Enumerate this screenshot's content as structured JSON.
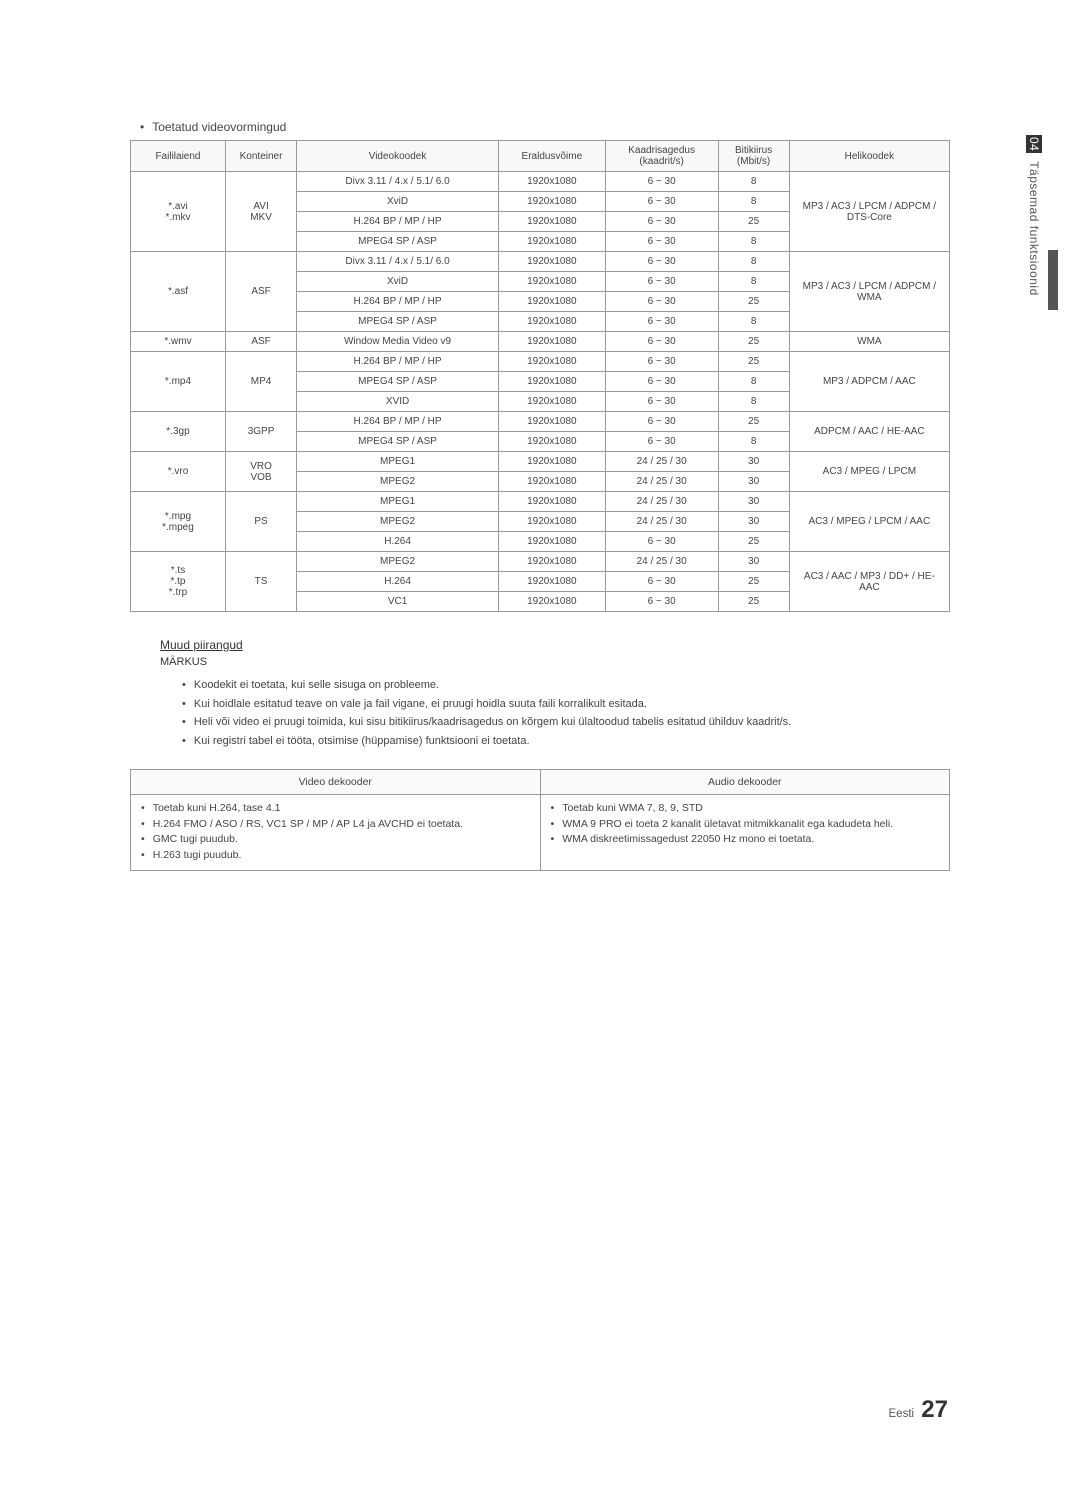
{
  "sideTab": {
    "num": "04",
    "label": "Täpsemad funktsioonid"
  },
  "sectionTitle": "Toetatud videovormingud",
  "headers": {
    "ext": "Faililaiend",
    "cont": "Konteiner",
    "codec": "Videokoodek",
    "res": "Eraldusvõime",
    "fps": "Kaadrisagedus (kaadrit/s)",
    "bit": "Bitikiirus (Mbit/s)",
    "audio": "Helikoodek"
  },
  "groups": [
    {
      "ext": "*.avi\n*.mkv",
      "cont": "AVI\nMKV",
      "audio": "MP3 / AC3 / LPCM / ADPCM / DTS-Core",
      "rows": [
        {
          "codec": "Divx 3.11 / 4.x / 5.1/ 6.0",
          "res": "1920x1080",
          "fps": "6 ~ 30",
          "bit": "8"
        },
        {
          "codec": "XviD",
          "res": "1920x1080",
          "fps": "6 ~ 30",
          "bit": "8"
        },
        {
          "codec": "H.264 BP / MP / HP",
          "res": "1920x1080",
          "fps": "6 ~ 30",
          "bit": "25"
        },
        {
          "codec": "MPEG4 SP / ASP",
          "res": "1920x1080",
          "fps": "6 ~ 30",
          "bit": "8"
        }
      ]
    },
    {
      "ext": "*.asf",
      "cont": "ASF",
      "audio": "MP3 / AC3 / LPCM / ADPCM / WMA",
      "rows": [
        {
          "codec": "Divx 3.11 / 4.x / 5.1/ 6.0",
          "res": "1920x1080",
          "fps": "6 ~ 30",
          "bit": "8"
        },
        {
          "codec": "XviD",
          "res": "1920x1080",
          "fps": "6 ~ 30",
          "bit": "8"
        },
        {
          "codec": "H.264 BP / MP / HP",
          "res": "1920x1080",
          "fps": "6 ~ 30",
          "bit": "25"
        },
        {
          "codec": "MPEG4 SP / ASP",
          "res": "1920x1080",
          "fps": "6 ~ 30",
          "bit": "8"
        }
      ]
    },
    {
      "ext": "*.wmv",
      "cont": "ASF",
      "audio": "WMA",
      "rows": [
        {
          "codec": "Window Media Video v9",
          "res": "1920x1080",
          "fps": "6 ~ 30",
          "bit": "25"
        }
      ]
    },
    {
      "ext": "*.mp4",
      "cont": "MP4",
      "audio": "MP3 / ADPCM / AAC",
      "rows": [
        {
          "codec": "H.264 BP / MP / HP",
          "res": "1920x1080",
          "fps": "6 ~ 30",
          "bit": "25"
        },
        {
          "codec": "MPEG4 SP / ASP",
          "res": "1920x1080",
          "fps": "6 ~ 30",
          "bit": "8"
        },
        {
          "codec": "XVID",
          "res": "1920x1080",
          "fps": "6 ~ 30",
          "bit": "8"
        }
      ]
    },
    {
      "ext": "*.3gp",
      "cont": "3GPP",
      "audio": "ADPCM / AAC / HE-AAC",
      "rows": [
        {
          "codec": "H.264 BP / MP / HP",
          "res": "1920x1080",
          "fps": "6 ~ 30",
          "bit": "25"
        },
        {
          "codec": "MPEG4 SP / ASP",
          "res": "1920x1080",
          "fps": "6 ~ 30",
          "bit": "8"
        }
      ]
    },
    {
      "ext": "*.vro",
      "cont": "VRO\nVOB",
      "audio": "AC3 / MPEG / LPCM",
      "rows": [
        {
          "codec": "MPEG1",
          "res": "1920x1080",
          "fps": "24 / 25 / 30",
          "bit": "30"
        },
        {
          "codec": "MPEG2",
          "res": "1920x1080",
          "fps": "24 / 25 / 30",
          "bit": "30"
        }
      ]
    },
    {
      "ext": "*.mpg\n*.mpeg",
      "cont": "PS",
      "audio": "AC3 / MPEG / LPCM / AAC",
      "rows": [
        {
          "codec": "MPEG1",
          "res": "1920x1080",
          "fps": "24 / 25 / 30",
          "bit": "30"
        },
        {
          "codec": "MPEG2",
          "res": "1920x1080",
          "fps": "24 / 25 / 30",
          "bit": "30"
        },
        {
          "codec": "H.264",
          "res": "1920x1080",
          "fps": "6 ~ 30",
          "bit": "25"
        }
      ]
    },
    {
      "ext": "*.ts\n*.tp\n*.trp",
      "cont": "TS",
      "audio": "AC3 / AAC / MP3 / DD+ / HE-AAC",
      "rows": [
        {
          "codec": "MPEG2",
          "res": "1920x1080",
          "fps": "24 / 25 / 30",
          "bit": "30"
        },
        {
          "codec": "H.264",
          "res": "1920x1080",
          "fps": "6 ~ 30",
          "bit": "25"
        },
        {
          "codec": "VC1",
          "res": "1920x1080",
          "fps": "6 ~ 30",
          "bit": "25"
        }
      ]
    }
  ],
  "notes": {
    "title": "Muud piirangud",
    "sub": "MÄRKUS",
    "items": [
      "Koodekit ei toetata, kui selle sisuga on probleeme.",
      "Kui hoidlale esitatud teave on vale ja fail vigane, ei pruugi hoidla suuta faili korralikult esitada.",
      "Heli või video ei pruugi toimida, kui sisu bitikiirus/kaadrisagedus on kõrgem kui ülaltoodud tabelis esitatud ühilduv kaadrit/s.",
      "Kui registri tabel ei tööta, otsimise (hüppamise) funktsiooni ei toetata."
    ]
  },
  "decoder": {
    "videoHead": "Video dekooder",
    "audioHead": "Audio dekooder",
    "video": [
      "Toetab kuni H.264, tase 4.1",
      "H.264 FMO / ASO / RS, VC1 SP / MP / AP L4 ja AVCHD ei toetata.",
      "GMC tugi puudub.",
      "H.263 tugi puudub."
    ],
    "audio": [
      "Toetab kuni WMA 7, 8, 9, STD",
      "WMA 9 PRO ei toeta 2 kanalit ületavat mitmikkanalit ega kadudeta heli.",
      "WMA diskreetimissagedust 22050 Hz mono ei toetata."
    ]
  },
  "footer": {
    "lang": "Eesti",
    "page": "27"
  }
}
